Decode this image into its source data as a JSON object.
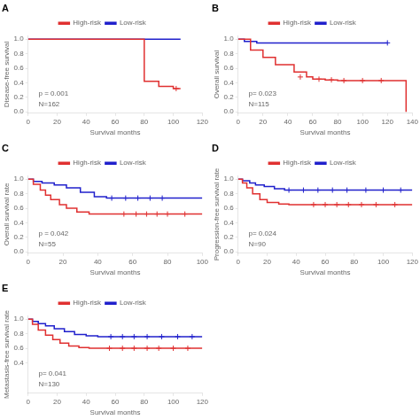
{
  "chart_data": [
    {
      "type": "line",
      "title": "A",
      "xlabel": "Survival months",
      "ylabel": "Disease-free survival",
      "annotations": [
        "p = 0.001",
        "N=162"
      ],
      "xlim": [
        0,
        120
      ],
      "ylim": [
        -0.02,
        1.05
      ],
      "xticks": [
        0,
        20,
        40,
        60,
        80,
        100,
        120
      ],
      "yticks": [
        {
          "value": 0.0,
          "label": "0.0"
        },
        0.2,
        0.4,
        0.6,
        0.8,
        {
          "value": 1.0,
          "label": "1.0"
        }
      ],
      "grid": false,
      "legend": "top",
      "series": [
        {
          "name": "High-risk",
          "color": "#E03030",
          "line_style": "steps",
          "marker": "+",
          "x": [
            0,
            65,
            80,
            80,
            90,
            100,
            105
          ],
          "values": [
            1.0,
            1.0,
            0.55,
            0.42,
            0.35,
            0.32,
            0.32
          ],
          "censored_x": [
            102
          ],
          "censored_values": [
            0.32
          ]
        },
        {
          "name": "Low-risk",
          "color": "#2020CC",
          "line_style": "steps",
          "marker": "+",
          "x": [
            0,
            105
          ],
          "values": [
            1.0,
            1.0
          ],
          "censored_x": [],
          "censored_values": []
        }
      ]
    },
    {
      "type": "line",
      "title": "B",
      "xlabel": "Survival months",
      "ylabel": "Overall survival",
      "annotations": [
        "p= 0.023",
        "N=115"
      ],
      "xlim": [
        0,
        140
      ],
      "ylim": [
        -0.02,
        1.05
      ],
      "xticks": [
        0,
        20,
        40,
        60,
        80,
        100,
        120,
        140
      ],
      "yticks": [
        {
          "value": 0.0,
          "label": "0.0"
        },
        0.2,
        0.4,
        0.6,
        0.8,
        {
          "value": 1.0,
          "label": "1.0"
        }
      ],
      "grid": false,
      "legend": "top",
      "series": [
        {
          "name": "High-risk",
          "color": "#E03030",
          "line_style": "steps",
          "marker": "+",
          "x": [
            0,
            10,
            20,
            30,
            45,
            55,
            60,
            70,
            80,
            90,
            130,
            135
          ],
          "values": [
            1.0,
            0.85,
            0.75,
            0.65,
            0.55,
            0.48,
            0.45,
            0.44,
            0.43,
            0.43,
            0.43,
            0.0
          ],
          "censored_x": [
            50,
            65,
            75,
            85,
            100,
            115
          ],
          "censored_values": [
            0.48,
            0.45,
            0.44,
            0.43,
            0.43,
            0.43
          ]
        },
        {
          "name": "Low-risk",
          "color": "#2020CC",
          "line_style": "steps",
          "marker": "+",
          "x": [
            0,
            5,
            15,
            120
          ],
          "values": [
            1.0,
            0.97,
            0.95,
            0.95
          ],
          "censored_x": [
            120
          ],
          "censored_values": [
            0.95
          ]
        }
      ]
    },
    {
      "type": "line",
      "title": "C",
      "xlabel": "Survival months",
      "ylabel": "Overall survival rate",
      "annotations": [
        "p = 0.042",
        "N=55"
      ],
      "xlim": [
        0,
        100
      ],
      "ylim": [
        -0.02,
        1.05
      ],
      "xticks": [
        0,
        20,
        40,
        60,
        80,
        100
      ],
      "yticks": [
        {
          "value": 0.0,
          "label": "0.0"
        },
        0.2,
        0.4,
        0.6,
        0.8,
        {
          "value": 1.0,
          "label": "1.0"
        }
      ],
      "grid": false,
      "legend": "top",
      "series": [
        {
          "name": "High-risk",
          "color": "#E03030",
          "line_style": "steps",
          "marker": "+",
          "x": [
            0,
            3,
            7,
            10,
            13,
            18,
            22,
            28,
            35,
            42,
            48,
            55,
            100
          ],
          "values": [
            1.0,
            0.93,
            0.85,
            0.78,
            0.72,
            0.65,
            0.6,
            0.55,
            0.52,
            0.52,
            0.52,
            0.52,
            0.52
          ],
          "censored_x": [
            55,
            62,
            68,
            74,
            80,
            90
          ],
          "censored_values": [
            0.52,
            0.52,
            0.52,
            0.52,
            0.52,
            0.52
          ]
        },
        {
          "name": "Low-risk",
          "color": "#2020CC",
          "line_style": "steps",
          "marker": "+",
          "x": [
            0,
            3,
            8,
            15,
            22,
            30,
            38,
            45,
            100
          ],
          "values": [
            1.0,
            0.97,
            0.95,
            0.92,
            0.88,
            0.82,
            0.76,
            0.74,
            0.74
          ],
          "censored_x": [
            48,
            56,
            63,
            70,
            77
          ],
          "censored_values": [
            0.74,
            0.74,
            0.74,
            0.74,
            0.74
          ]
        }
      ]
    },
    {
      "type": "line",
      "title": "D",
      "xlabel": "Survival months",
      "ylabel": "Progression-free survival rate",
      "annotations": [
        "p= 0.024",
        "N=90"
      ],
      "xlim": [
        0,
        120
      ],
      "ylim": [
        -0.02,
        1.05
      ],
      "xticks": [
        0,
        20,
        40,
        60,
        80,
        100,
        120
      ],
      "yticks": [
        {
          "value": 0.0,
          "label": "0.0"
        },
        0.2,
        0.4,
        0.6,
        0.8,
        {
          "value": 1.0,
          "label": "1.0"
        }
      ],
      "grid": false,
      "legend": "top",
      "series": [
        {
          "name": "High-risk",
          "color": "#E03030",
          "line_style": "steps",
          "marker": "+",
          "x": [
            0,
            3,
            6,
            10,
            15,
            20,
            28,
            35,
            42,
            50,
            120
          ],
          "values": [
            1.0,
            0.95,
            0.88,
            0.8,
            0.72,
            0.68,
            0.66,
            0.65,
            0.65,
            0.65,
            0.65
          ],
          "censored_x": [
            52,
            60,
            68,
            76,
            85,
            95,
            108
          ],
          "censored_values": [
            0.65,
            0.65,
            0.65,
            0.65,
            0.65,
            0.65,
            0.65
          ]
        },
        {
          "name": "Low-risk",
          "color": "#2020CC",
          "line_style": "steps",
          "marker": "+",
          "x": [
            0,
            3,
            8,
            12,
            18,
            25,
            32,
            120
          ],
          "values": [
            1.0,
            0.98,
            0.95,
            0.92,
            0.9,
            0.87,
            0.85,
            0.85
          ],
          "censored_x": [
            35,
            45,
            55,
            65,
            75,
            88,
            100,
            112
          ],
          "censored_values": [
            0.85,
            0.85,
            0.85,
            0.85,
            0.85,
            0.85,
            0.85,
            0.85
          ]
        }
      ]
    },
    {
      "type": "line",
      "title": "E",
      "xlabel": "Survival months",
      "ylabel": "Metastasis-free survival rate",
      "annotations": [
        "p= 0.041",
        "N=130"
      ],
      "xlim": [
        0,
        120
      ],
      "ylim": [
        -0.02,
        1.05
      ],
      "xticks": [
        0,
        20,
        40,
        60,
        80,
        100,
        120
      ],
      "yticks": [
        0.4,
        0.6,
        0.8,
        {
          "value": 1.0,
          "label": "1.0"
        }
      ],
      "grid": false,
      "legend": "top",
      "series": [
        {
          "name": "High-risk",
          "color": "#E03030",
          "line_style": "steps",
          "marker": "+",
          "x": [
            0,
            3,
            7,
            12,
            17,
            22,
            28,
            35,
            42,
            50,
            55,
            120
          ],
          "values": [
            1.0,
            0.93,
            0.85,
            0.78,
            0.72,
            0.67,
            0.63,
            0.61,
            0.6,
            0.6,
            0.6,
            0.6
          ],
          "censored_x": [
            56,
            65,
            73,
            82,
            90,
            100,
            110
          ],
          "censored_values": [
            0.6,
            0.6,
            0.6,
            0.6,
            0.6,
            0.6,
            0.6
          ]
        },
        {
          "name": "Low-risk",
          "color": "#2020CC",
          "line_style": "steps",
          "marker": "+",
          "x": [
            0,
            3,
            7,
            12,
            18,
            25,
            32,
            40,
            48,
            55,
            120
          ],
          "values": [
            1.0,
            0.97,
            0.94,
            0.91,
            0.87,
            0.83,
            0.79,
            0.77,
            0.76,
            0.76,
            0.76
          ],
          "censored_x": [
            57,
            65,
            73,
            82,
            92,
            103,
            113
          ],
          "censored_values": [
            0.76,
            0.76,
            0.76,
            0.76,
            0.76,
            0.76,
            0.76
          ]
        }
      ]
    }
  ]
}
